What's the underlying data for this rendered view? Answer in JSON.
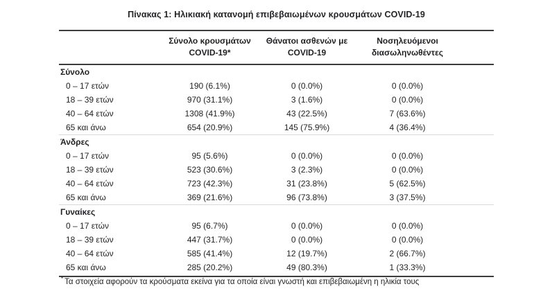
{
  "title": "Πίνακας 1: Ηλικιακή κατανομή επιβεβαιωμένων κρουσμάτων COVID-19",
  "colors": {
    "text": "#232327",
    "rule_dark": "#3c3c3c",
    "rule_light": "#d9d9d9",
    "background": "#ffffff"
  },
  "table": {
    "columns": [
      {
        "line1": "Σύνολο κρουσμάτων",
        "line2": "COVID-19*"
      },
      {
        "line1": "Θάνατοι ασθενών με",
        "line2": "COVID-19"
      },
      {
        "line1": "Νοσηλευόμενοι",
        "line2": "διασωληνωθέντες"
      }
    ],
    "sections": [
      {
        "label": "Σύνολο",
        "rows": [
          {
            "label": "0 – 17 ετών",
            "values": [
              "190 (6.1%)",
              "0 (0.0%)",
              "0 (0.0%)"
            ]
          },
          {
            "label": "18 – 39 ετών",
            "values": [
              "970 (31.1%)",
              "3 (1.6%)",
              "0 (0.0%)"
            ]
          },
          {
            "label": "40 – 64 ετών",
            "values": [
              "1308 (41.9%)",
              "43 (22.5%)",
              "7 (63.6%)"
            ]
          },
          {
            "label": "65 και άνω",
            "values": [
              "654 (20.9%)",
              "145 (75.9%)",
              "4 (36.4%)"
            ]
          }
        ]
      },
      {
        "label": "Άνδρες",
        "rows": [
          {
            "label": "0 – 17 ετών",
            "values": [
              "95 (5.6%)",
              "0 (0.0%)",
              "0 (0.0%)"
            ]
          },
          {
            "label": "18 – 39 ετών",
            "values": [
              "523 (30.6%)",
              "3 (2.3%)",
              "0 (0.0%)"
            ]
          },
          {
            "label": "40 – 64 ετών",
            "values": [
              "723 (42.3%)",
              "31 (23.8%)",
              "5 (62.5%)"
            ]
          },
          {
            "label": "65 και άνω",
            "values": [
              "369 (21.6%)",
              "96 (73.8%)",
              "3 (37.5%)"
            ]
          }
        ]
      },
      {
        "label": "Γυναίκες",
        "rows": [
          {
            "label": "0 – 17 ετών",
            "values": [
              "95 (6.7%)",
              "0 (0.0%)",
              "0 (0.0%)"
            ]
          },
          {
            "label": "18 – 39 ετών",
            "values": [
              "447 (31.7%)",
              "0 (0.0%)",
              "0 (0.0%)"
            ]
          },
          {
            "label": "40 – 64 ετών",
            "values": [
              "585 (41.4%)",
              "12 (19.7%)",
              "2 (66.7%)"
            ]
          },
          {
            "label": "65 και άνω",
            "values": [
              "285 (20.2%)",
              "49 (80.3%)",
              "1 (33.3%)"
            ]
          }
        ]
      }
    ]
  },
  "footnote": {
    "marker": "*",
    "text": "Τα στοιχεία αφορούν τα κρούσματα εκείνα για τα οποία είναι γνωστή και επιβεβαιωμένη η ηλικία τους"
  }
}
